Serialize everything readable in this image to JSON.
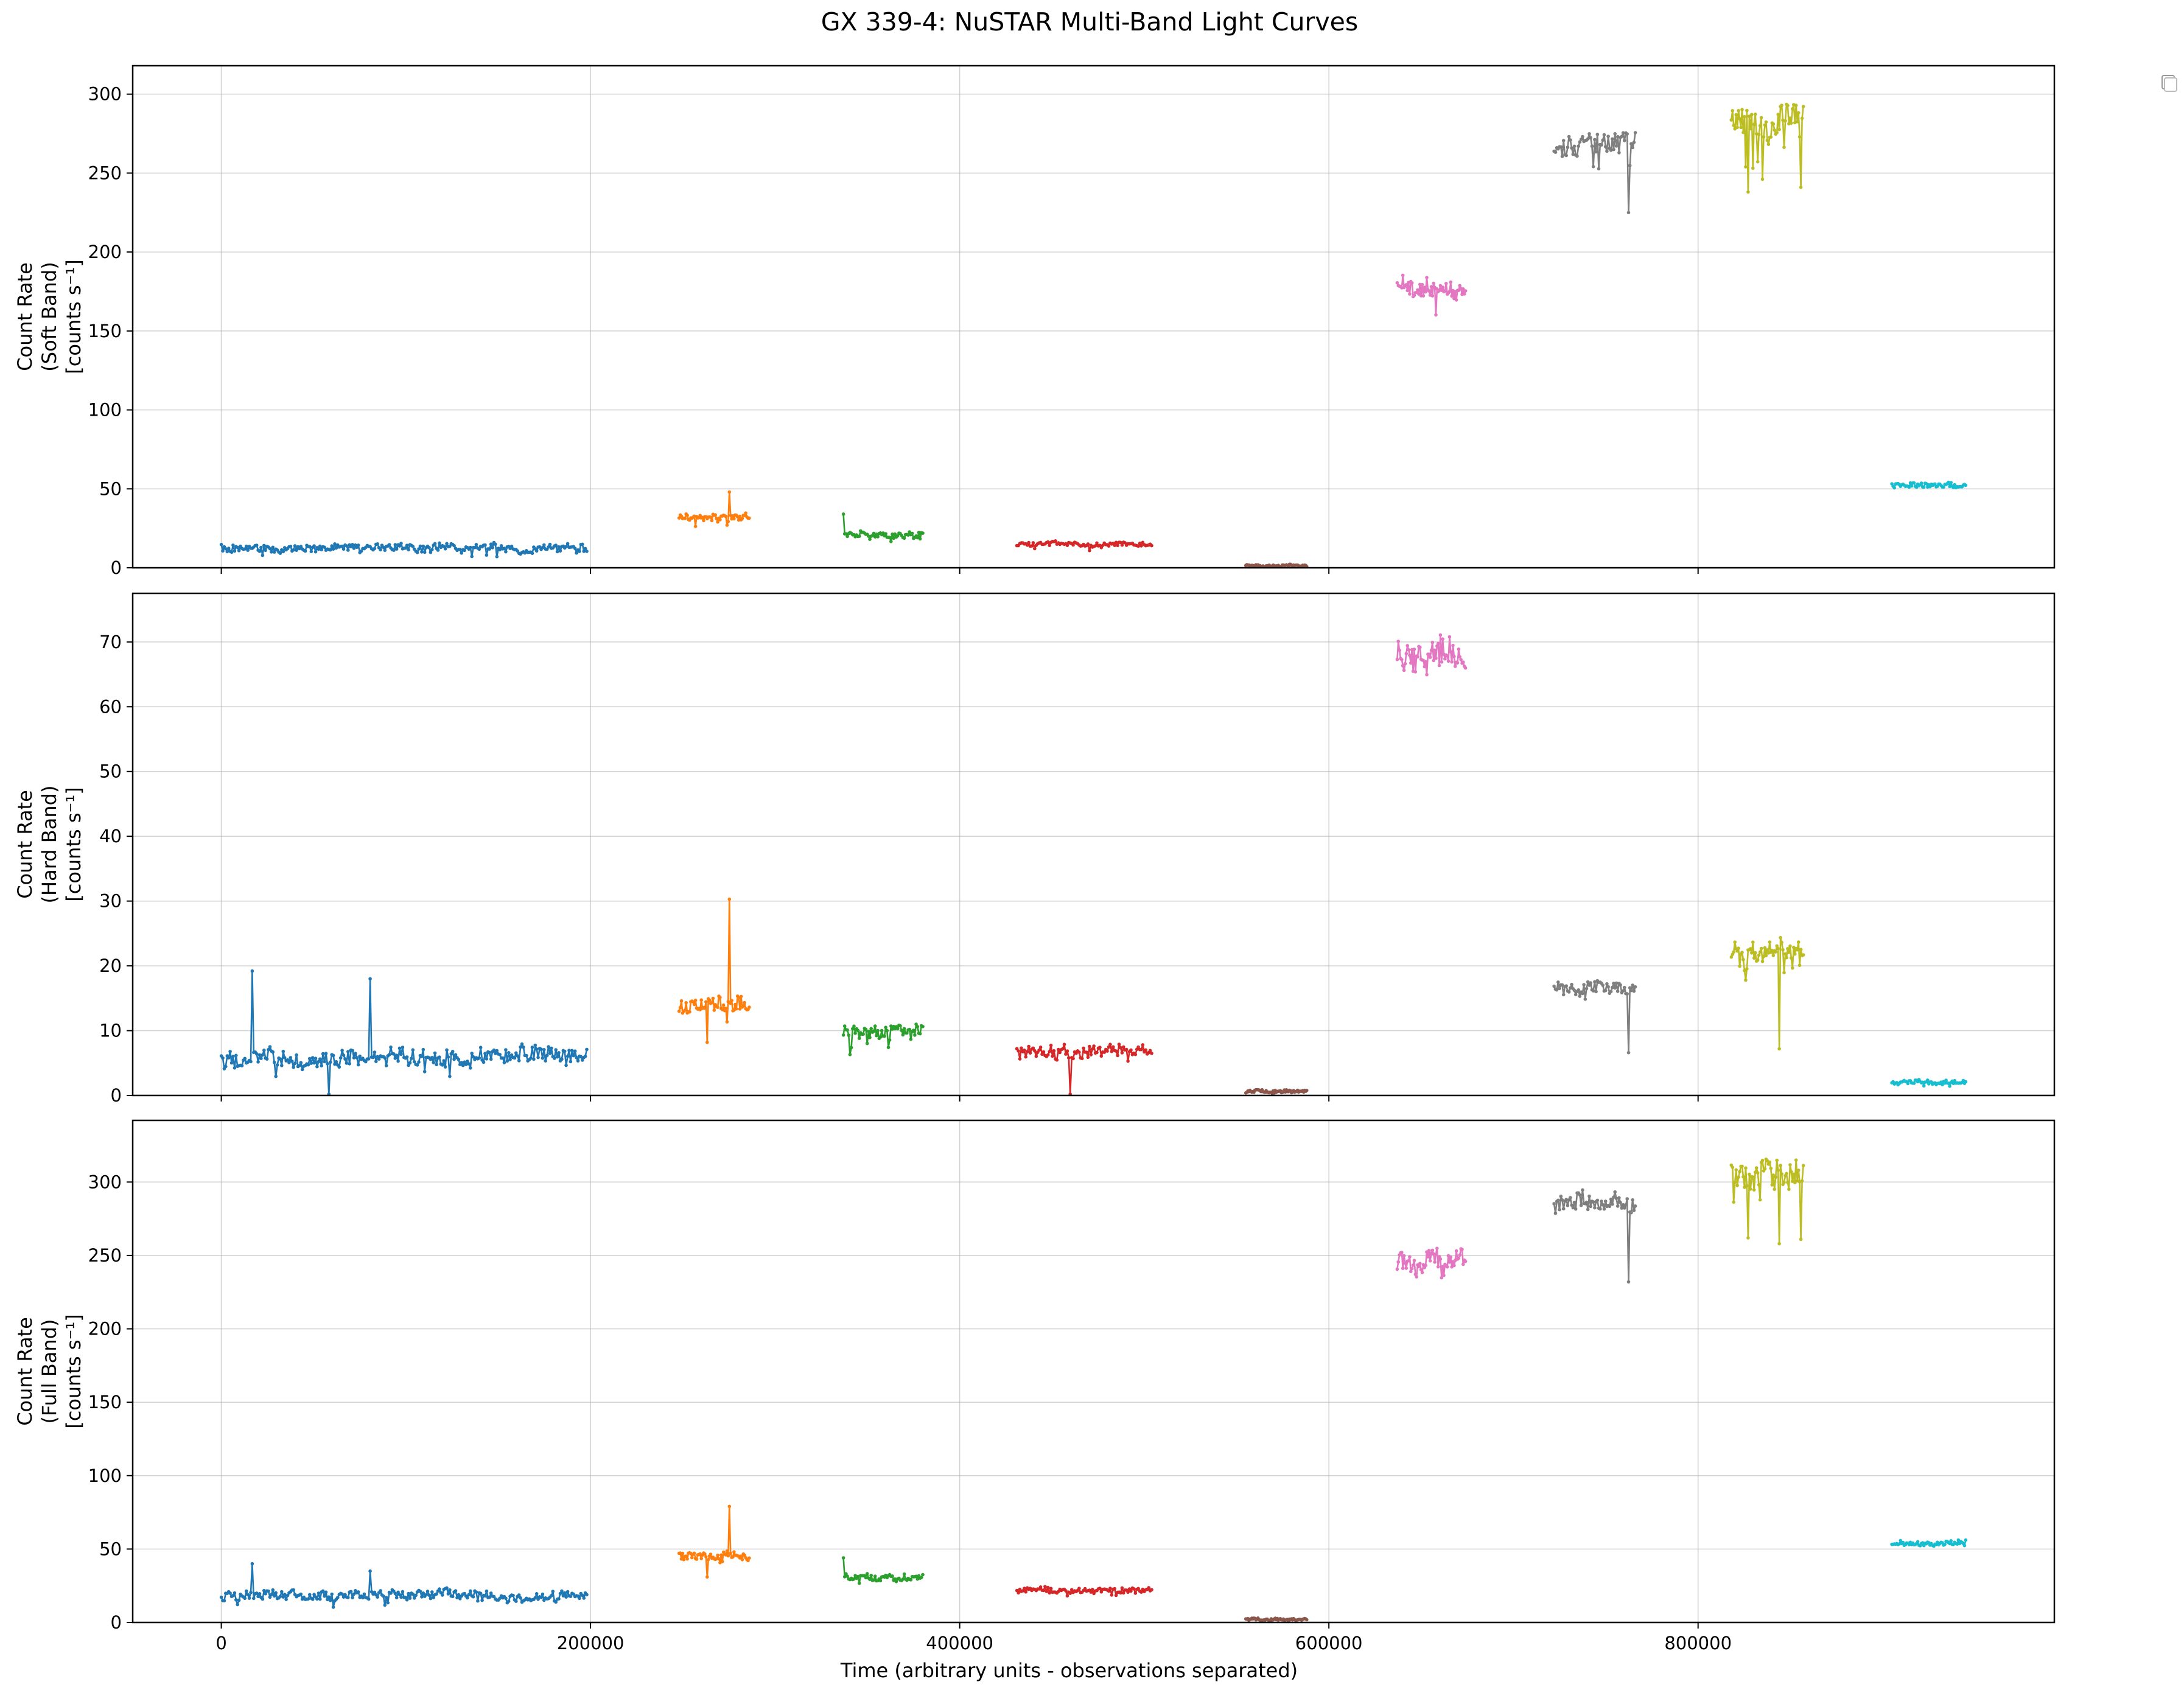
{
  "figure_title": "GX 339-4: NuSTAR Multi-Band Light Curves",
  "chart_data": [
    {
      "type": "line",
      "ylabel": [
        "Count Rate",
        "(Soft Band)",
        "[counts s⁻¹]"
      ],
      "xlabel": "",
      "xlim": [
        -48000,
        993000
      ],
      "ylim": [
        0,
        318
      ],
      "xticks": [
        0,
        200000,
        400000,
        600000,
        800000
      ],
      "yticks": [
        0,
        50,
        100,
        150,
        200,
        250,
        300
      ],
      "grid": true,
      "series": [
        {
          "color": "#1f77b4",
          "x_range": [
            0,
            198000
          ],
          "mean": 12.5,
          "noise": 2.2,
          "dip": 3,
          "spikes": []
        },
        {
          "color": "#ff7f0e",
          "x_range": [
            248000,
            286000
          ],
          "mean": 32,
          "noise": 2.0,
          "dip": 4,
          "spikes": [
            [
              275000,
              48
            ]
          ]
        },
        {
          "color": "#2ca02c",
          "x_range": [
            337000,
            380000
          ],
          "mean": 21,
          "noise": 1.8,
          "dip": 4,
          "spikes": [
            [
              337000,
              34
            ]
          ]
        },
        {
          "color": "#d62728",
          "x_range": [
            431000,
            504000
          ],
          "mean": 15,
          "noise": 1.2,
          "dip": 2,
          "spikes": []
        },
        {
          "color": "#8c564b",
          "x_range": [
            555000,
            588000
          ],
          "mean": 1.5,
          "noise": 0.6,
          "dip": 0.5,
          "spikes": []
        },
        {
          "color": "#e377c2",
          "x_range": [
            637000,
            674000
          ],
          "mean": 177,
          "noise": 5.5,
          "dip": 8,
          "spikes": []
        },
        {
          "color": "#7f7f7f",
          "x_range": [
            722000,
            766000
          ],
          "mean": 268,
          "noise": 6.5,
          "dip": 15,
          "spikes": [
            [
              762000,
              225
            ]
          ]
        },
        {
          "color": "#bcbd22",
          "x_range": [
            818000,
            857000
          ],
          "mean": 283,
          "noise": 8.0,
          "dip": 20,
          "spikes": [
            [
              827000,
              238
            ],
            [
              856000,
              241
            ]
          ]
        },
        {
          "color": "#17becf",
          "x_range": [
            905000,
            945000
          ],
          "mean": 52,
          "noise": 1.5,
          "dip": 2,
          "spikes": []
        }
      ]
    },
    {
      "type": "line",
      "ylabel": [
        "Count Rate",
        "(Hard Band)",
        "[counts s⁻¹]"
      ],
      "xlabel": "",
      "xlim": [
        -48000,
        993000
      ],
      "ylim": [
        0,
        77.5
      ],
      "xticks": [
        0,
        200000,
        400000,
        600000,
        800000
      ],
      "yticks": [
        0,
        10,
        20,
        30,
        40,
        50,
        60,
        70
      ],
      "grid": true,
      "series": [
        {
          "color": "#1f77b4",
          "x_range": [
            0,
            198000
          ],
          "mean": 6,
          "noise": 1.2,
          "dip": 1.5,
          "spikes": [
            [
              17000,
              19.2
            ],
            [
              81000,
              18
            ],
            [
              58000,
              0.2
            ]
          ]
        },
        {
          "color": "#ff7f0e",
          "x_range": [
            248000,
            286000
          ],
          "mean": 14.2,
          "noise": 1.0,
          "dip": 2,
          "spikes": [
            [
              275000,
              30.3
            ],
            [
              263000,
              8.2
            ]
          ]
        },
        {
          "color": "#2ca02c",
          "x_range": [
            337000,
            380000
          ],
          "mean": 9.8,
          "noise": 1.0,
          "dip": 1.5,
          "spikes": []
        },
        {
          "color": "#d62728",
          "x_range": [
            431000,
            504000
          ],
          "mean": 7,
          "noise": 0.9,
          "dip": 1.2,
          "spikes": [
            [
              460000,
              0.2
            ]
          ]
        },
        {
          "color": "#8c564b",
          "x_range": [
            555000,
            588000
          ],
          "mean": 0.6,
          "noise": 0.2,
          "dip": 0.2,
          "spikes": []
        },
        {
          "color": "#e377c2",
          "x_range": [
            637000,
            674000
          ],
          "mean": 68,
          "noise": 2.2,
          "dip": 3,
          "spikes": []
        },
        {
          "color": "#7f7f7f",
          "x_range": [
            722000,
            766000
          ],
          "mean": 16.5,
          "noise": 0.9,
          "dip": 2,
          "spikes": [
            [
              762000,
              6.6
            ]
          ]
        },
        {
          "color": "#bcbd22",
          "x_range": [
            818000,
            857000
          ],
          "mean": 22.5,
          "noise": 1.3,
          "dip": 3,
          "spikes": [
            [
              844000,
              7.2
            ]
          ]
        },
        {
          "color": "#17becf",
          "x_range": [
            905000,
            945000
          ],
          "mean": 2,
          "noise": 0.3,
          "dip": 0.3,
          "spikes": []
        }
      ]
    },
    {
      "type": "line",
      "ylabel": [
        "Count Rate",
        "(Full Band)",
        "[counts s⁻¹]"
      ],
      "xlabel": "Time (arbitrary units - observations separated)",
      "xlim": [
        -48000,
        993000
      ],
      "ylim": [
        0,
        342
      ],
      "xticks": [
        0,
        200000,
        400000,
        600000,
        800000
      ],
      "yticks": [
        0,
        50,
        100,
        150,
        200,
        250,
        300
      ],
      "grid": true,
      "series": [
        {
          "color": "#1f77b4",
          "x_range": [
            0,
            198000
          ],
          "mean": 18,
          "noise": 3.0,
          "dip": 4,
          "spikes": [
            [
              17000,
              40
            ],
            [
              81000,
              35
            ]
          ]
        },
        {
          "color": "#ff7f0e",
          "x_range": [
            248000,
            286000
          ],
          "mean": 46,
          "noise": 2.5,
          "dip": 5,
          "spikes": [
            [
              275000,
              79
            ],
            [
              263000,
              31
            ]
          ]
        },
        {
          "color": "#2ca02c",
          "x_range": [
            337000,
            380000
          ],
          "mean": 31,
          "noise": 2.5,
          "dip": 5,
          "spikes": [
            [
              337000,
              44
            ]
          ]
        },
        {
          "color": "#d62728",
          "x_range": [
            431000,
            504000
          ],
          "mean": 22,
          "noise": 1.8,
          "dip": 3,
          "spikes": []
        },
        {
          "color": "#8c564b",
          "x_range": [
            555000,
            588000
          ],
          "mean": 2,
          "noise": 0.7,
          "dip": 0.6,
          "spikes": []
        },
        {
          "color": "#e377c2",
          "x_range": [
            637000,
            674000
          ],
          "mean": 245,
          "noise": 6.5,
          "dip": 9,
          "spikes": []
        },
        {
          "color": "#7f7f7f",
          "x_range": [
            722000,
            766000
          ],
          "mean": 285,
          "noise": 6.5,
          "dip": 15,
          "spikes": [
            [
              762000,
              232
            ]
          ]
        },
        {
          "color": "#bcbd22",
          "x_range": [
            818000,
            857000
          ],
          "mean": 305,
          "noise": 8.5,
          "dip": 22,
          "spikes": [
            [
              827000,
              262
            ],
            [
              844000,
              258
            ],
            [
              856000,
              261
            ]
          ]
        },
        {
          "color": "#17becf",
          "x_range": [
            905000,
            945000
          ],
          "mean": 54,
          "noise": 1.6,
          "dip": 2,
          "spikes": []
        }
      ]
    }
  ]
}
